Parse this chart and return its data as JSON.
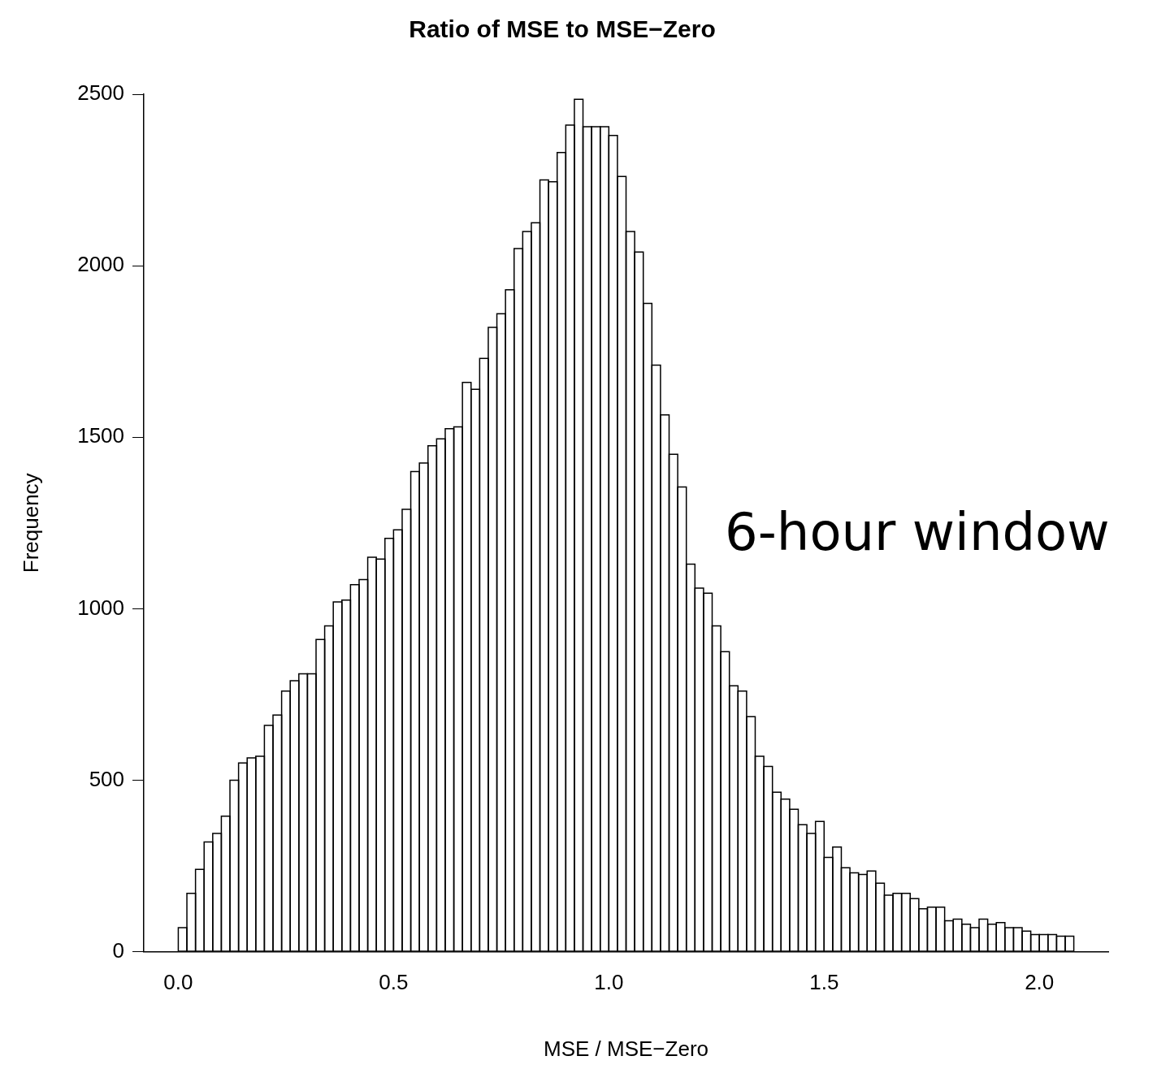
{
  "chart_data": {
    "type": "histogram",
    "title": "Ratio of MSE to MSE−Zero",
    "xlabel": "MSE / MSE−Zero",
    "ylabel": "Frequency",
    "annotations": [
      "6-hour window"
    ],
    "bins": [
      0,
      0.02,
      0.04,
      0.06,
      0.08,
      0.1,
      0.12,
      0.14,
      0.16,
      0.18,
      0.2,
      0.22,
      0.24,
      0.26,
      0.28,
      0.3,
      0.32,
      0.34,
      0.36,
      0.38,
      0.4,
      0.42,
      0.44,
      0.46,
      0.48,
      0.5,
      0.52,
      0.54,
      0.56,
      0.58,
      0.6,
      0.62,
      0.64,
      0.66,
      0.68,
      0.7,
      0.72,
      0.74,
      0.76,
      0.78,
      0.8,
      0.82,
      0.84,
      0.86,
      0.88,
      0.9,
      0.92,
      0.94,
      0.96,
      0.98,
      1,
      1.02,
      1.04,
      1.06,
      1.08,
      1.1,
      1.12,
      1.14,
      1.16,
      1.18,
      1.2,
      1.22,
      1.24,
      1.26,
      1.28,
      1.3,
      1.32,
      1.34,
      1.36,
      1.38,
      1.4,
      1.42,
      1.44,
      1.46,
      1.48,
      1.5,
      1.52,
      1.54,
      1.56,
      1.58,
      1.6,
      1.62,
      1.64,
      1.66,
      1.68,
      1.7,
      1.72,
      1.74,
      1.76,
      1.78,
      1.8,
      1.82,
      1.84,
      1.86,
      1.88,
      1.9,
      1.92,
      1.94,
      1.96,
      1.98,
      2,
      2.02,
      2.04,
      2.06,
      2.08
    ],
    "values": [
      70,
      170,
      240,
      320,
      345,
      395,
      500,
      550,
      565,
      570,
      660,
      690,
      760,
      790,
      810,
      810,
      910,
      950,
      1020,
      1025,
      1070,
      1085,
      1150,
      1145,
      1205,
      1230,
      1290,
      1400,
      1425,
      1475,
      1495,
      1525,
      1530,
      1660,
      1640,
      1730,
      1820,
      1860,
      1930,
      2050,
      2100,
      2125,
      2250,
      2245,
      2330,
      2410,
      2485,
      2405,
      2405,
      2405,
      2380,
      2260,
      2100,
      2040,
      1890,
      1710,
      1565,
      1450,
      1355,
      1130,
      1060,
      1045,
      950,
      875,
      775,
      760,
      685,
      570,
      540,
      465,
      445,
      415,
      370,
      345,
      380,
      275,
      305,
      245,
      230,
      225,
      235,
      200,
      165,
      170,
      170,
      155,
      125,
      130,
      130,
      90,
      95,
      80,
      70,
      95,
      80,
      85,
      70,
      70,
      60,
      50,
      50,
      50,
      45,
      45
    ],
    "color": "#ffffff",
    "xlim": [
      -0.08,
      2.16
    ],
    "xticks": [
      {
        "value": 0,
        "label": "0.0"
      },
      {
        "value": 0.5,
        "label": "0.5"
      },
      {
        "value": 1,
        "label": "1.0"
      },
      {
        "value": 1.5,
        "label": "1.5"
      },
      {
        "value": 2,
        "label": "2.0"
      }
    ],
    "ylim": [
      0,
      2500
    ],
    "yticks": [
      0,
      500,
      1000,
      1500,
      2000,
      2500
    ],
    "grid": false,
    "legend": false
  }
}
